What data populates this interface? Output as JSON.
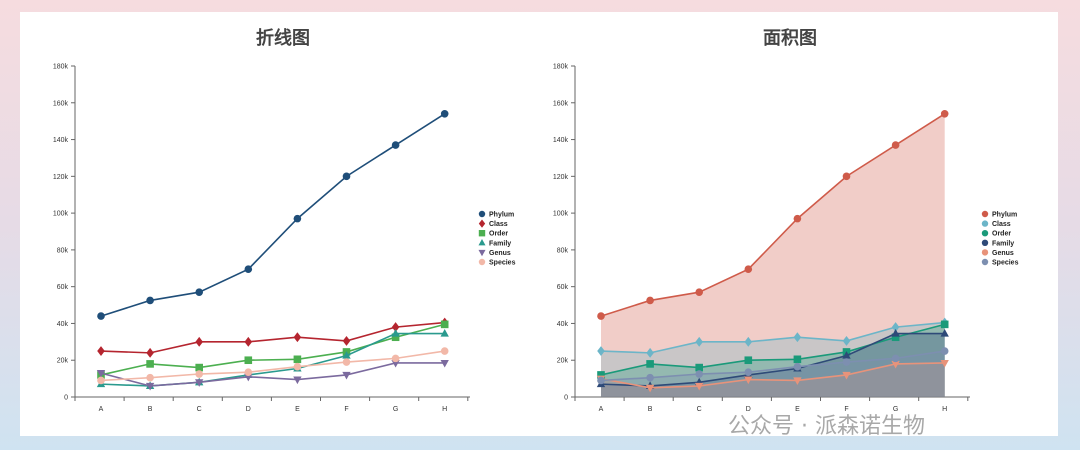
{
  "watermark": "公众号 · 派森诺生物",
  "chart_data": [
    {
      "type": "line",
      "title": "折线图",
      "categories": [
        "A",
        "B",
        "C",
        "D",
        "E",
        "F",
        "G",
        "H"
      ],
      "ylim": [
        0,
        180000
      ],
      "yticks": [
        "0",
        "20k",
        "40k",
        "60k",
        "80k",
        "100k",
        "120k",
        "140k",
        "160k",
        "180k"
      ],
      "legend": "right",
      "series": [
        {
          "name": "Phylum",
          "color": "#1f4e79",
          "marker": "circle",
          "values": [
            44000,
            52500,
            57000,
            69500,
            97000,
            120000,
            137000,
            154000
          ]
        },
        {
          "name": "Class",
          "color": "#b5252f",
          "marker": "diamond",
          "values": [
            25000,
            24000,
            30000,
            30000,
            32500,
            30500,
            38000,
            40500
          ]
        },
        {
          "name": "Order",
          "color": "#4caf50",
          "marker": "square",
          "values": [
            12000,
            18000,
            16000,
            20000,
            20500,
            24500,
            32500,
            39500
          ]
        },
        {
          "name": "Family",
          "color": "#2a9a8e",
          "marker": "triangle",
          "values": [
            7000,
            6000,
            8000,
            12000,
            15500,
            22500,
            34500,
            34500
          ]
        },
        {
          "name": "Genus",
          "color": "#7b6a9e",
          "marker": "triangle-down",
          "values": [
            13000,
            6000,
            8000,
            11000,
            9500,
            12000,
            18500,
            18500
          ]
        },
        {
          "name": "Species",
          "color": "#f2b8a8",
          "marker": "circle",
          "values": [
            9000,
            10500,
            12500,
            13500,
            16500,
            19000,
            21000,
            25000
          ]
        }
      ]
    },
    {
      "type": "area",
      "title": "面积图",
      "categories": [
        "A",
        "B",
        "C",
        "D",
        "E",
        "F",
        "G",
        "H"
      ],
      "ylim": [
        0,
        180000
      ],
      "yticks": [
        "0",
        "20k",
        "40k",
        "60k",
        "80k",
        "100k",
        "120k",
        "140k",
        "160k",
        "180k"
      ],
      "legend": "right",
      "series": [
        {
          "name": "Phylum",
          "color": "#cf5b4a",
          "marker": "circle",
          "values": [
            44000,
            52500,
            57000,
            69500,
            97000,
            120000,
            137000,
            154000
          ]
        },
        {
          "name": "Class",
          "color": "#6cb5c8",
          "marker": "diamond",
          "values": [
            25000,
            24000,
            30000,
            30000,
            32500,
            30500,
            38000,
            40500
          ]
        },
        {
          "name": "Order",
          "color": "#1a9a7a",
          "marker": "square",
          "values": [
            12000,
            18000,
            16000,
            20000,
            20500,
            24500,
            32500,
            39500
          ]
        },
        {
          "name": "Family",
          "color": "#2e4a78",
          "marker": "triangle",
          "values": [
            7000,
            6000,
            8000,
            12000,
            15500,
            22500,
            34500,
            34500
          ]
        },
        {
          "name": "Genus",
          "color": "#e8937a",
          "marker": "triangle-down",
          "values": [
            10000,
            5000,
            6000,
            9500,
            9000,
            12000,
            18000,
            18500
          ]
        },
        {
          "name": "Species",
          "color": "#7d8fb0",
          "marker": "circle",
          "values": [
            9000,
            10500,
            12500,
            13500,
            16500,
            19000,
            21000,
            25000
          ]
        }
      ]
    }
  ]
}
